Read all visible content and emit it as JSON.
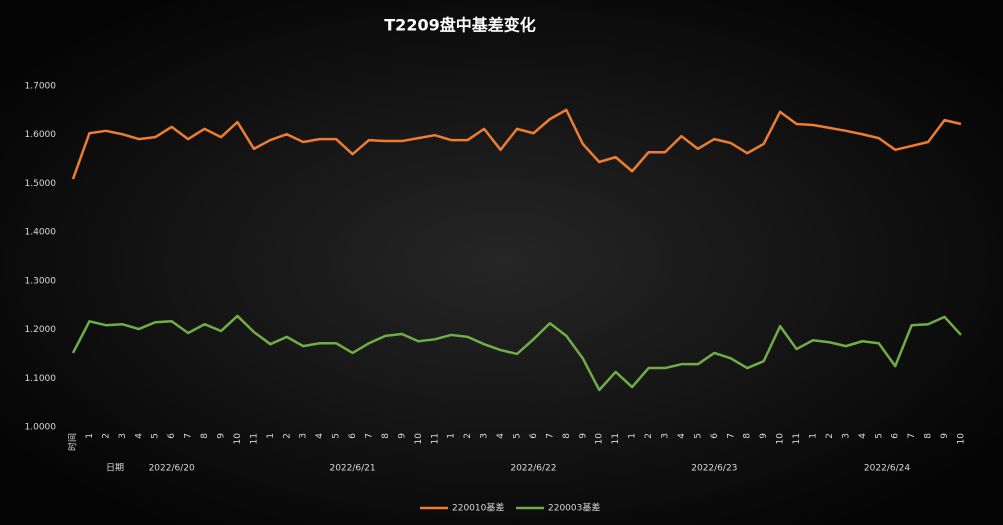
{
  "chart_data": {
    "type": "line",
    "title": "T2209盘中基差变化",
    "categories": [
      "时间",
      "1",
      "2",
      "3",
      "4",
      "5",
      "6",
      "7",
      "8",
      "9",
      "10",
      "11",
      "1",
      "2",
      "3",
      "4",
      "5",
      "6",
      "7",
      "8",
      "9",
      "10",
      "11",
      "1",
      "2",
      "3",
      "4",
      "5",
      "6",
      "7",
      "8",
      "9",
      "10",
      "11",
      "1",
      "2",
      "3",
      "4",
      "5",
      "6",
      "7",
      "8",
      "9",
      "10",
      "11",
      "1",
      "2",
      "3",
      "4",
      "5",
      "6",
      "7",
      "8",
      "9",
      "10"
    ],
    "date_axis_label": "日期",
    "groups": [
      "2022/6/20",
      "2022/6/21",
      "2022/6/22",
      "2022/6/23",
      "2022/6/24"
    ],
    "series": [
      {
        "name": "220010基差",
        "color": "#ed7d31",
        "values": [
          1.509,
          1.603,
          1.608,
          1.601,
          1.591,
          1.595,
          1.616,
          1.591,
          1.612,
          1.595,
          1.626,
          1.571,
          1.589,
          1.601,
          1.585,
          1.591,
          1.591,
          1.56,
          1.589,
          1.587,
          1.587,
          1.593,
          1.599,
          1.589,
          1.589,
          1.612,
          1.569,
          1.612,
          1.603,
          1.632,
          1.651,
          1.581,
          1.544,
          1.554,
          1.525,
          1.564,
          1.564,
          1.597,
          1.571,
          1.591,
          1.583,
          1.562,
          1.581,
          1.647,
          1.622,
          1.62,
          1.614,
          1.608,
          1.601,
          1.593,
          1.569,
          1.577,
          1.585,
          1.63,
          1.622
        ]
      },
      {
        "name": "220003基差",
        "color": "#70ad47",
        "values": [
          1.152,
          1.217,
          1.209,
          1.211,
          1.201,
          1.215,
          1.217,
          1.193,
          1.211,
          1.197,
          1.228,
          1.195,
          1.17,
          1.185,
          1.166,
          1.172,
          1.172,
          1.152,
          1.172,
          1.187,
          1.191,
          1.176,
          1.18,
          1.189,
          1.185,
          1.17,
          1.158,
          1.15,
          1.18,
          1.213,
          1.187,
          1.141,
          1.076,
          1.113,
          1.082,
          1.121,
          1.121,
          1.129,
          1.129,
          1.152,
          1.141,
          1.121,
          1.135,
          1.207,
          1.16,
          1.178,
          1.174,
          1.166,
          1.176,
          1.172,
          1.125,
          1.209,
          1.211,
          1.226,
          1.189
        ]
      }
    ],
    "ylim": [
      1.0,
      1.7
    ],
    "yticks": [
      {
        "value": 1.0,
        "label": "1.0000"
      },
      {
        "value": 1.1,
        "label": "1.1000"
      },
      {
        "value": 1.2,
        "label": "1.2000"
      },
      {
        "value": 1.3,
        "label": "1.3000"
      },
      {
        "value": 1.4,
        "label": "1.4000"
      },
      {
        "value": 1.5,
        "label": "1.5000"
      },
      {
        "value": 1.6,
        "label": "1.6000"
      },
      {
        "value": 1.7,
        "label": "1.7000"
      }
    ],
    "grid": false,
    "legend": "bottom"
  }
}
